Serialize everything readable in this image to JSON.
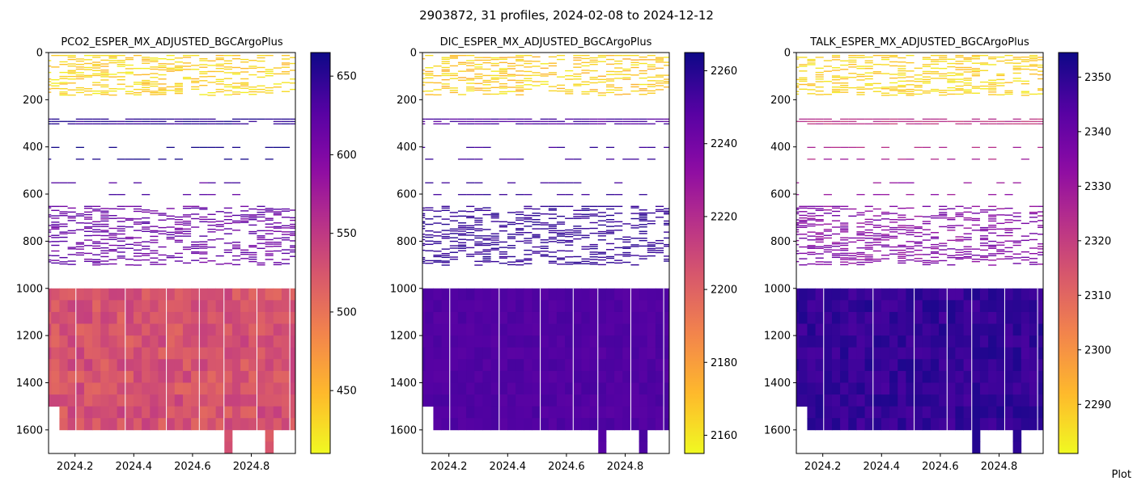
{
  "figure": {
    "title": "2903872, 31 profiles, 2024-02-08 to 2024-12-12",
    "corner_text": "Plot"
  },
  "chart_data": [
    {
      "type": "heatmap",
      "title": "PCO2_ESPER_MX_ADJUSTED_BGCArgoPlus",
      "colormap": "plasma_r",
      "xlim": [
        2024.11,
        2024.95
      ],
      "ylim": [
        1700,
        0
      ],
      "xticks": [
        2024.2,
        2024.4,
        2024.6,
        2024.8
      ],
      "yticks": [
        0,
        200,
        400,
        600,
        800,
        1000,
        1200,
        1400,
        1600
      ],
      "colorbar": {
        "range": [
          410,
          665
        ],
        "ticks": [
          450,
          500,
          550,
          600,
          650
        ]
      },
      "sections": [
        {
          "depth": [
            10,
            180
          ],
          "value_range": [
            415,
            450
          ]
        },
        {
          "depth": [
            270,
            300
          ],
          "value_range": [
            640,
            660
          ]
        },
        {
          "depth": [
            400,
            450
          ],
          "value_range": [
            655,
            665
          ]
        },
        {
          "depth": [
            550,
            600
          ],
          "value_range": [
            615,
            640
          ]
        },
        {
          "depth": [
            650,
            900
          ],
          "value_range": [
            600,
            630
          ]
        },
        {
          "depth": [
            1000,
            1700
          ],
          "value_range": [
            490,
            545
          ]
        }
      ]
    },
    {
      "type": "heatmap",
      "title": "DIC_ESPER_MX_ADJUSTED_BGCArgoPlus",
      "colormap": "plasma_r",
      "xlim": [
        2024.11,
        2024.95
      ],
      "ylim": [
        1700,
        0
      ],
      "xticks": [
        2024.2,
        2024.4,
        2024.6,
        2024.8
      ],
      "yticks": [
        0,
        200,
        400,
        600,
        800,
        1000,
        1200,
        1400,
        1600
      ],
      "colorbar": {
        "range": [
          2155,
          2265
        ],
        "ticks": [
          2160,
          2180,
          2200,
          2220,
          2240,
          2260
        ]
      },
      "sections": [
        {
          "depth": [
            10,
            180
          ],
          "value_range": [
            2158,
            2175
          ]
        },
        {
          "depth": [
            270,
            300
          ],
          "value_range": [
            2245,
            2255
          ]
        },
        {
          "depth": [
            400,
            450
          ],
          "value_range": [
            2250,
            2258
          ]
        },
        {
          "depth": [
            550,
            600
          ],
          "value_range": [
            2252,
            2258
          ]
        },
        {
          "depth": [
            650,
            900
          ],
          "value_range": [
            2254,
            2260
          ]
        },
        {
          "depth": [
            1000,
            1700
          ],
          "value_range": [
            2245,
            2252
          ]
        }
      ]
    },
    {
      "type": "heatmap",
      "title": "TALK_ESPER_MX_ADJUSTED_BGCArgoPlus",
      "colormap": "plasma_r",
      "xlim": [
        2024.11,
        2024.95
      ],
      "ylim": [
        1700,
        0
      ],
      "xticks": [
        2024.2,
        2024.4,
        2024.6,
        2024.8
      ],
      "yticks": [
        0,
        200,
        400,
        600,
        800,
        1000,
        1200,
        1400,
        1600
      ],
      "colorbar": {
        "range": [
          2281,
          2354.5
        ],
        "ticks": [
          2290,
          2300,
          2310,
          2320,
          2330,
          2340,
          2350
        ]
      },
      "sections": [
        {
          "depth": [
            10,
            180
          ],
          "value_range": [
            2283,
            2292
          ]
        },
        {
          "depth": [
            270,
            300
          ],
          "value_range": [
            2318,
            2325
          ]
        },
        {
          "depth": [
            400,
            450
          ],
          "value_range": [
            2322,
            2330
          ]
        },
        {
          "depth": [
            550,
            600
          ],
          "value_range": [
            2328,
            2335
          ]
        },
        {
          "depth": [
            650,
            900
          ],
          "value_range": [
            2330,
            2340
          ]
        },
        {
          "depth": [
            1000,
            1700
          ],
          "value_range": [
            2342,
            2352
          ]
        }
      ]
    }
  ]
}
